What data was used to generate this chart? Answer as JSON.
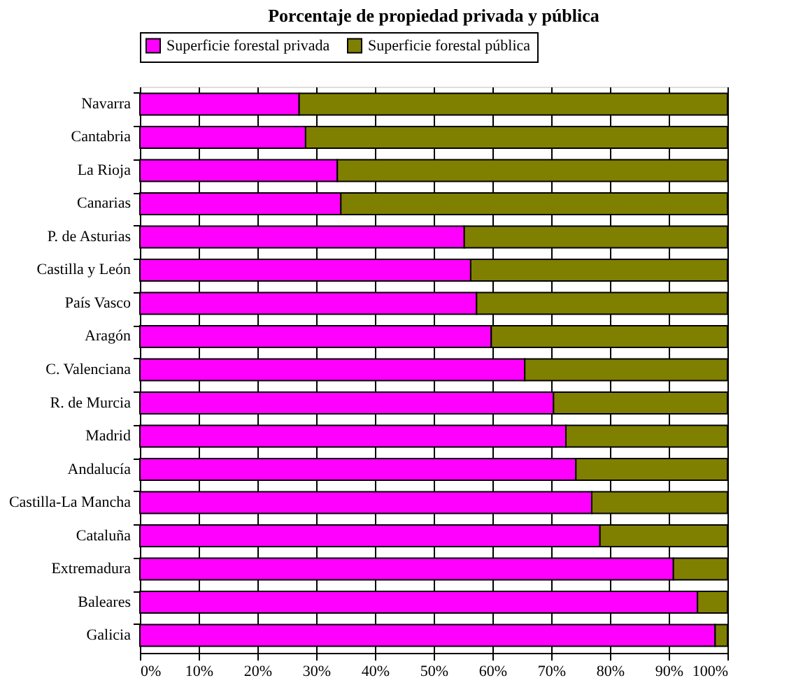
{
  "chart_data": {
    "type": "bar",
    "title": "Porcentaje de propiedad privada y pública",
    "orientation": "horizontal",
    "stacked": true,
    "categories": [
      "Navarra",
      "Cantabria",
      "La Rioja",
      "Canarias",
      "P. de Asturias",
      "Castilla y León",
      "País Vasco",
      "Aragón",
      "C. Valenciana",
      "R. de Murcia",
      "Madrid",
      "Andalucía",
      "Castilla-La Mancha",
      "Cataluña",
      "Extremadura",
      "Baleares",
      "Galicia"
    ],
    "series": [
      {
        "name": "Superficie forestal privada",
        "color": "#ff00ff",
        "values": [
          27.1,
          28.2,
          33.6,
          34.2,
          55.2,
          56.3,
          57.3,
          59.8,
          65.5,
          70.4,
          72.5,
          74.2,
          76.9,
          78.3,
          90.8,
          94.9,
          97.9
        ]
      },
      {
        "name": "Superficie forestal pública",
        "color": "#808000",
        "values": [
          72.9,
          71.8,
          66.4,
          65.8,
          44.8,
          43.7,
          42.7,
          40.2,
          34.5,
          29.6,
          27.5,
          25.8,
          23.1,
          21.7,
          9.2,
          5.1,
          2.1
        ]
      }
    ],
    "xlim": [
      0,
      100
    ],
    "xticks": [
      {
        "value": 0,
        "label": "0%"
      },
      {
        "value": 10,
        "label": "10%"
      },
      {
        "value": 20,
        "label": "20%"
      },
      {
        "value": 30,
        "label": "30%"
      },
      {
        "value": 40,
        "label": "40%"
      },
      {
        "value": 50,
        "label": "50%"
      },
      {
        "value": 60,
        "label": "60%"
      },
      {
        "value": 70,
        "label": "70%"
      },
      {
        "value": 80,
        "label": "80%"
      },
      {
        "value": 90,
        "label": "90%"
      },
      {
        "value": 100,
        "label": "100%"
      }
    ],
    "grid": "x",
    "legend": "top"
  }
}
